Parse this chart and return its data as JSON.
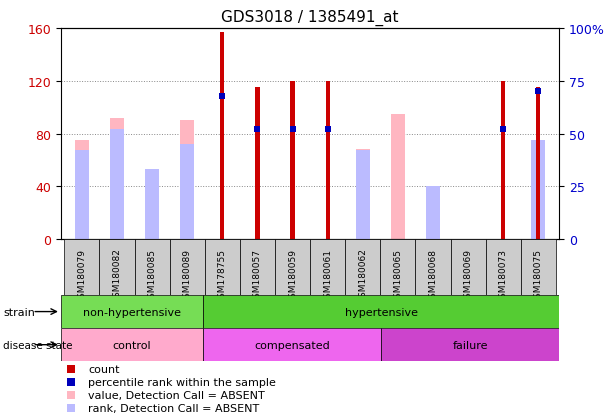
{
  "title": "GDS3018 / 1385491_at",
  "samples": [
    "GSM180079",
    "GSM180082",
    "GSM180085",
    "GSM180089",
    "GSM178755",
    "GSM180057",
    "GSM180059",
    "GSM180061",
    "GSM180062",
    "GSM180065",
    "GSM180068",
    "GSM180069",
    "GSM180073",
    "GSM180075"
  ],
  "count_values": [
    0,
    0,
    0,
    0,
    157,
    115,
    120,
    120,
    0,
    0,
    0,
    0,
    120,
    115
  ],
  "pink_values": [
    75,
    92,
    35,
    90,
    0,
    0,
    0,
    0,
    68,
    95,
    35,
    0,
    0,
    0
  ],
  "percentile_values_right": [
    0,
    0,
    0,
    0,
    68,
    52,
    52,
    52,
    0,
    0,
    0,
    0,
    52,
    70
  ],
  "light_blue_rank_right": [
    42,
    52,
    33,
    45,
    0,
    0,
    0,
    0,
    42,
    0,
    25,
    0,
    0,
    47
  ],
  "strain_groups": [
    {
      "label": "non-hypertensive",
      "start": 0,
      "end": 4,
      "color": "#76DD55"
    },
    {
      "label": "hypertensive",
      "start": 4,
      "end": 14,
      "color": "#55CC33"
    }
  ],
  "disease_groups": [
    {
      "label": "control",
      "start": 0,
      "end": 4,
      "color": "#FFAACC"
    },
    {
      "label": "compensated",
      "start": 4,
      "end": 9,
      "color": "#EE66EE"
    },
    {
      "label": "failure",
      "start": 9,
      "end": 14,
      "color": "#CC44CC"
    }
  ],
  "ylim_left": [
    0,
    160
  ],
  "ylim_right": [
    0,
    100
  ],
  "yticks_left": [
    0,
    40,
    80,
    120,
    160
  ],
  "yticks_right": [
    0,
    25,
    50,
    75,
    100
  ],
  "count_color": "#CC0000",
  "pink_color": "#FFB6C1",
  "blue_color": "#0000BB",
  "light_blue_color": "#BBBBFF",
  "grid_color": "#888888",
  "label_color_left": "#CC0000",
  "label_color_right": "#0000CC",
  "sample_box_color": "#CCCCCC",
  "left_label_bg": "#E8E8E8"
}
